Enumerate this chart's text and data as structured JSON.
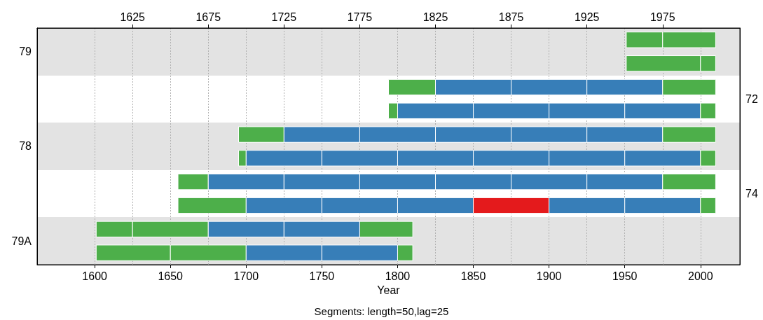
{
  "chart_data": {
    "type": "bar",
    "orientation": "horizontal",
    "xlabel": "Year",
    "annotations": [
      "Segments: length=50,lag=25"
    ],
    "categories": [
      "79",
      null,
      "72",
      null,
      "78",
      null,
      "74",
      null,
      "79A",
      null
    ],
    "xlim": [
      1562,
      2026
    ],
    "xticks": [
      1600,
      1650,
      1700,
      1750,
      1800,
      1850,
      1900,
      1950,
      2000
    ],
    "x2lim": [
      1562,
      2026
    ],
    "x2ticks": [
      1625,
      1675,
      1725,
      1775,
      1825,
      1875,
      1925,
      1975
    ],
    "grid": "x",
    "series": [
      {
        "base": [
          1951,
          1951,
          1794,
          1794,
          1695,
          1695,
          1655,
          1655,
          1601,
          1601
        ],
        "values": [
          24,
          49,
          31,
          6,
          30,
          5,
          20,
          45,
          24,
          49
        ],
        "colors": [
          "#4daf4a",
          "#4daf4a",
          "#4daf4a",
          "#4daf4a",
          "#4daf4a",
          "#4daf4a",
          "#4daf4a",
          "#4daf4a",
          "#4daf4a",
          "#4daf4a"
        ]
      },
      {
        "base": [
          1975,
          2000,
          1825,
          1800,
          1725,
          1700,
          1675,
          1700,
          1625,
          1650
        ],
        "values": [
          35,
          10,
          50,
          50,
          50,
          50,
          50,
          50,
          50,
          50
        ],
        "colors": [
          "#4daf4a",
          "#4daf4a",
          "#377eb8",
          "#377eb8",
          "#377eb8",
          "#377eb8",
          "#377eb8",
          "#377eb8",
          "#4daf4a",
          "#4daf4a"
        ]
      },
      {
        "base": [
          null,
          null,
          1875,
          1850,
          1775,
          1750,
          1725,
          1750,
          1675,
          1700
        ],
        "values": [
          null,
          null,
          50,
          50,
          50,
          50,
          50,
          50,
          50,
          50
        ],
        "colors": [
          null,
          null,
          "#377eb8",
          "#377eb8",
          "#377eb8",
          "#377eb8",
          "#377eb8",
          "#377eb8",
          "#377eb8",
          "#377eb8"
        ]
      },
      {
        "base": [
          null,
          null,
          1925,
          1900,
          1825,
          1800,
          1775,
          1800,
          1725,
          1750
        ],
        "values": [
          null,
          null,
          50,
          50,
          50,
          50,
          50,
          50,
          50,
          50
        ],
        "colors": [
          null,
          null,
          "#377eb8",
          "#377eb8",
          "#377eb8",
          "#377eb8",
          "#377eb8",
          "#377eb8",
          "#377eb8",
          "#377eb8"
        ]
      },
      {
        "base": [
          null,
          null,
          1975,
          1950,
          1875,
          1850,
          1825,
          1850,
          1775,
          1800
        ],
        "values": [
          null,
          null,
          35,
          50,
          50,
          50,
          50,
          50,
          35,
          10
        ],
        "colors": [
          null,
          null,
          "#4daf4a",
          "#377eb8",
          "#377eb8",
          "#377eb8",
          "#377eb8",
          "#e41a1c",
          "#4daf4a",
          "#4daf4a"
        ]
      },
      {
        "base": [
          null,
          null,
          null,
          2000,
          1925,
          1900,
          1875,
          1900,
          null,
          null
        ],
        "values": [
          null,
          null,
          null,
          10,
          50,
          50,
          50,
          50,
          null,
          null
        ],
        "colors": [
          null,
          null,
          null,
          "#4daf4a",
          "#377eb8",
          "#377eb8",
          "#377eb8",
          "#377eb8",
          null,
          null
        ]
      },
      {
        "base": [
          null,
          null,
          null,
          null,
          1975,
          1950,
          1925,
          1950,
          null,
          null
        ],
        "values": [
          null,
          null,
          null,
          null,
          35,
          50,
          50,
          50,
          null,
          null
        ],
        "colors": [
          null,
          null,
          null,
          null,
          "#4daf4a",
          "#377eb8",
          "#377eb8",
          "#377eb8",
          null,
          null
        ]
      },
      {
        "base": [
          null,
          null,
          null,
          null,
          null,
          2000,
          1975,
          2000,
          null,
          null
        ],
        "values": [
          null,
          null,
          null,
          null,
          null,
          10,
          35,
          10,
          null,
          null
        ],
        "colors": [
          null,
          null,
          null,
          null,
          null,
          "#4daf4a",
          "#4daf4a",
          "#4daf4a",
          null,
          null
        ]
      }
    ]
  }
}
